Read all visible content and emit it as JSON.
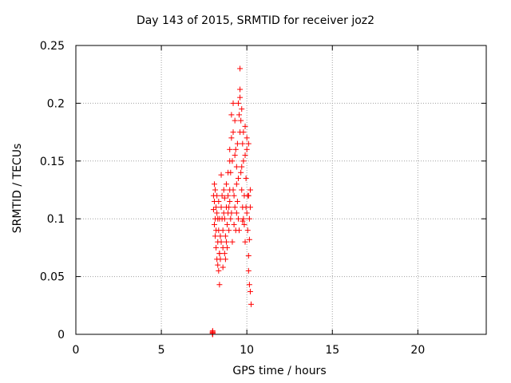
{
  "chart_data": {
    "type": "scatter",
    "title": "Day 143 of 2015, SRMTID for receiver joz2",
    "xlabel": "GPS time / hours",
    "ylabel": "SRMTID / TECUs",
    "xlim": [
      0,
      24
    ],
    "ylim": [
      0,
      0.25
    ],
    "x_ticks": [
      0,
      5,
      10,
      15,
      20
    ],
    "x_tick_labels": [
      "0",
      "5",
      "10",
      "15",
      "20"
    ],
    "y_ticks": [
      0,
      0.05,
      0.1,
      0.15,
      0.2,
      0.25
    ],
    "y_tick_labels": [
      "0",
      "0.05",
      "0.1",
      "0.15",
      "0.2",
      "0.25"
    ],
    "grid": true,
    "marker": "+",
    "color": "#ff0000",
    "series": [
      {
        "x": [
          8.0,
          8.0,
          8.0,
          8.0,
          8.0,
          8.0,
          8.0,
          8.0,
          8.0,
          8.0,
          8.05,
          8.05,
          8.1,
          8.1,
          8.1,
          8.15,
          8.15,
          8.15,
          8.2,
          8.2,
          8.2,
          8.25,
          8.25,
          8.25,
          8.3,
          8.3,
          8.3,
          8.35,
          8.35,
          8.35,
          8.4,
          8.4,
          8.4,
          8.45,
          8.45,
          8.5,
          8.5,
          8.5,
          8.55,
          8.55,
          8.6,
          8.6,
          8.6,
          8.65,
          8.65,
          8.7,
          8.7,
          8.7,
          8.75,
          8.75,
          8.8,
          8.8,
          8.8,
          8.85,
          8.85,
          8.9,
          8.9,
          8.9,
          8.95,
          8.95,
          9.0,
          9.0,
          9.0,
          9.05,
          9.05,
          9.1,
          9.1,
          9.1,
          9.15,
          9.15,
          9.2,
          9.2,
          9.2,
          9.25,
          9.25,
          9.3,
          9.3,
          9.3,
          9.35,
          9.35,
          9.4,
          9.4,
          9.4,
          9.45,
          9.45,
          9.5,
          9.5,
          9.5,
          9.55,
          9.55,
          9.6,
          9.6,
          9.6,
          9.65,
          9.65,
          9.7,
          9.7,
          9.7,
          9.75,
          9.75,
          9.8,
          9.8,
          9.8,
          9.85,
          9.85,
          9.9,
          9.9,
          9.9,
          9.95,
          9.95,
          10.0,
          10.0,
          10.0,
          10.05,
          10.05,
          10.1,
          10.1,
          10.1,
          10.15,
          10.15,
          10.15,
          10.2,
          10.2,
          10.2,
          10.25,
          8.4,
          9.0,
          9.6,
          10.1,
          9.75
        ],
        "y": [
          0.0,
          0.001,
          0.002,
          0.003,
          0.0,
          0.001,
          0.002,
          0.0,
          0.001,
          0.002,
          0.12,
          0.108,
          0.13,
          0.095,
          0.115,
          0.085,
          0.1,
          0.125,
          0.075,
          0.11,
          0.09,
          0.065,
          0.105,
          0.12,
          0.06,
          0.08,
          0.1,
          0.055,
          0.09,
          0.115,
          0.043,
          0.07,
          0.1,
          0.065,
          0.085,
          0.08,
          0.11,
          0.138,
          0.1,
          0.12,
          0.075,
          0.09,
          0.058,
          0.105,
          0.125,
          0.07,
          0.1,
          0.118,
          0.065,
          0.085,
          0.08,
          0.11,
          0.13,
          0.075,
          0.095,
          0.12,
          0.105,
          0.14,
          0.09,
          0.11,
          0.15,
          0.16,
          0.125,
          0.1,
          0.14,
          0.19,
          0.17,
          0.105,
          0.08,
          0.15,
          0.2,
          0.175,
          0.125,
          0.095,
          0.12,
          0.155,
          0.185,
          0.11,
          0.09,
          0.16,
          0.13,
          0.145,
          0.105,
          0.115,
          0.165,
          0.2,
          0.135,
          0.1,
          0.09,
          0.19,
          0.205,
          0.212,
          0.23,
          0.185,
          0.14,
          0.145,
          0.195,
          0.125,
          0.11,
          0.165,
          0.1,
          0.15,
          0.175,
          0.12,
          0.095,
          0.08,
          0.155,
          0.18,
          0.135,
          0.11,
          0.105,
          0.16,
          0.17,
          0.09,
          0.12,
          0.068,
          0.055,
          0.12,
          0.043,
          0.082,
          0.1,
          0.11,
          0.125,
          0.037,
          0.026,
          0.07,
          0.115,
          0.175,
          0.165,
          0.098
        ]
      }
    ]
  }
}
